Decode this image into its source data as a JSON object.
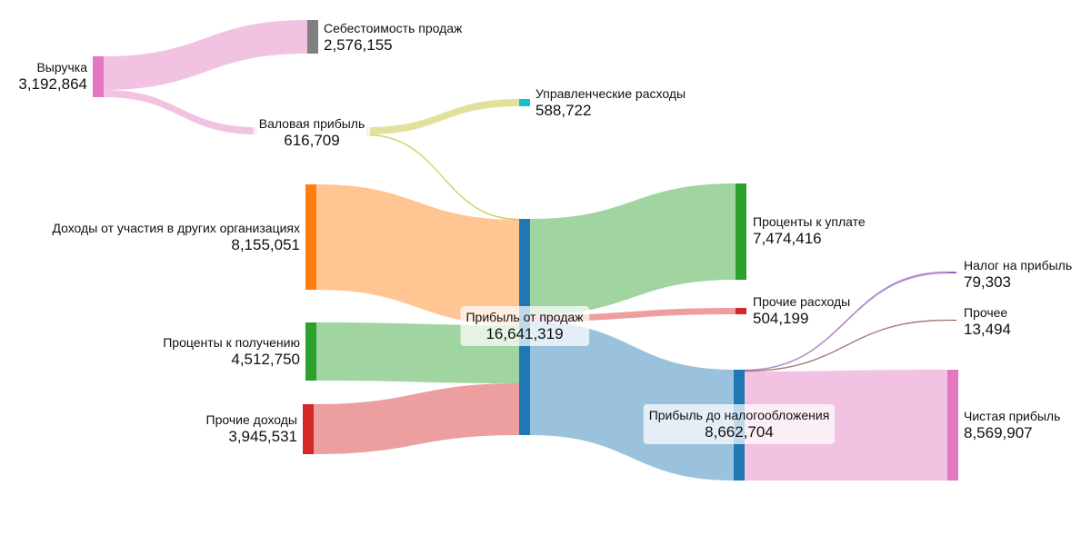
{
  "chart_data": {
    "type": "sankey",
    "nodes": [
      {
        "id": "revenue",
        "name": "Выручка",
        "value": "3,192,864",
        "color": "#e377c2"
      },
      {
        "id": "cogs",
        "name": "Себестоимость продаж",
        "value": "2,576,155",
        "color": "#7f7f7f"
      },
      {
        "id": "gross",
        "name": "Валовая прибыль",
        "value": "616,709",
        "color": "#bcbd22"
      },
      {
        "id": "admin",
        "name": "Управленческие расходы",
        "value": "588,722",
        "color": "#17becf"
      },
      {
        "id": "participation",
        "name": "Доходы от участия в других организациях",
        "value": "8,155,051",
        "color": "#ff7f0e"
      },
      {
        "id": "interest_in",
        "name": "Проценты к получению",
        "value": "4,512,750",
        "color": "#2ca02c"
      },
      {
        "id": "other_in",
        "name": "Прочие доходы",
        "value": "3,945,531",
        "color": "#d62728"
      },
      {
        "id": "op_profit",
        "name": "Прибыль от продаж",
        "value": "16,641,319",
        "color": "#1f77b4"
      },
      {
        "id": "interest_out",
        "name": "Проценты к уплате",
        "value": "7,474,416",
        "color": "#2ca02c"
      },
      {
        "id": "other_out",
        "name": "Прочие расходы",
        "value": "504,199",
        "color": "#d62728"
      },
      {
        "id": "pretax",
        "name": "Прибыль до налогообложения",
        "value": "8,662,704",
        "color": "#1f77b4"
      },
      {
        "id": "tax",
        "name": "Налог на прибыль",
        "value": "79,303",
        "color": "#9467bd"
      },
      {
        "id": "other",
        "name": "Прочее",
        "value": "13,494",
        "color": "#8c564b"
      },
      {
        "id": "net",
        "name": "Чистая прибыль",
        "value": "8,569,907",
        "color": "#e377c2"
      }
    ],
    "links": [
      {
        "source": "revenue",
        "target": "cogs",
        "value": 2576155,
        "color": "#e377c2"
      },
      {
        "source": "revenue",
        "target": "gross",
        "value": 616709,
        "color": "#e377c2"
      },
      {
        "source": "gross",
        "target": "admin",
        "value": 588722,
        "color": "#bcbd22"
      },
      {
        "source": "gross",
        "target": "op_profit",
        "value": 27987,
        "color": "#bcbd22"
      },
      {
        "source": "participation",
        "target": "op_profit",
        "value": 8155051,
        "color": "#ff7f0e"
      },
      {
        "source": "interest_in",
        "target": "op_profit",
        "value": 4512750,
        "color": "#2ca02c"
      },
      {
        "source": "other_in",
        "target": "op_profit",
        "value": 3945531,
        "color": "#d62728"
      },
      {
        "source": "op_profit",
        "target": "interest_out",
        "value": 7474416,
        "color": "#2ca02c"
      },
      {
        "source": "op_profit",
        "target": "other_out",
        "value": 504199,
        "color": "#d62728"
      },
      {
        "source": "op_profit",
        "target": "pretax",
        "value": 8662704,
        "color": "#1f77b4"
      },
      {
        "source": "pretax",
        "target": "tax",
        "value": 79303,
        "color": "#9467bd"
      },
      {
        "source": "pretax",
        "target": "other",
        "value": 13494,
        "color": "#8c564b"
      },
      {
        "source": "pretax",
        "target": "net",
        "value": 8569907,
        "color": "#e377c2"
      }
    ]
  }
}
